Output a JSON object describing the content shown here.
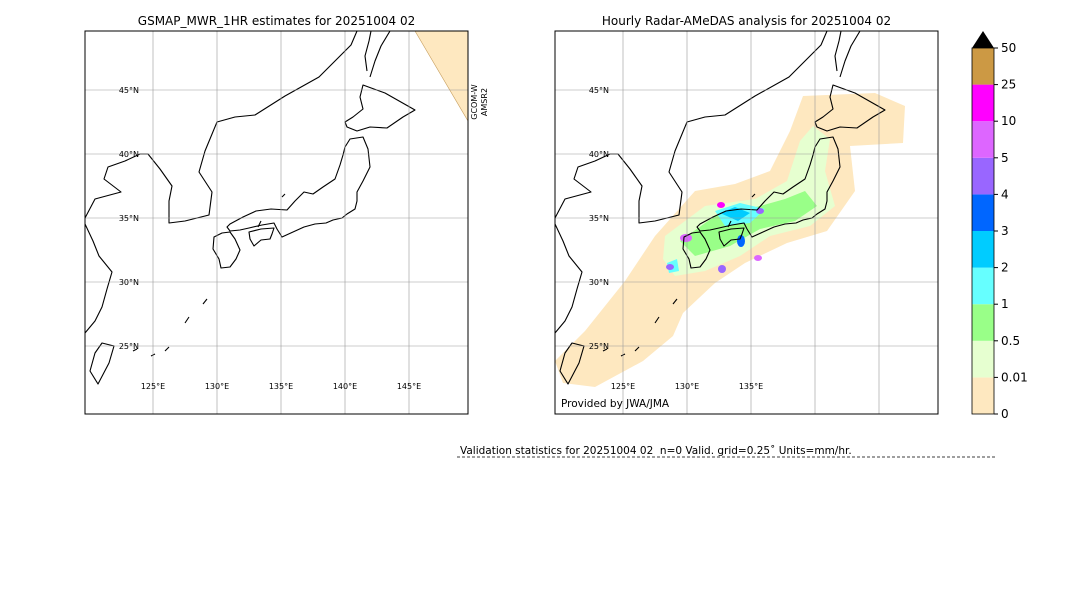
{
  "maps": [
    {
      "title": "GSMAP_MWR_1HR estimates for 20251004 02",
      "lat_labels": [
        "45°N",
        "40°N",
        "35°N",
        "30°N",
        "25°N"
      ],
      "lon_labels": [
        "125°E",
        "130°E",
        "135°E",
        "140°E",
        "145°E"
      ],
      "sensor_labels": [
        "GCOM-W",
        "AMSR2"
      ]
    },
    {
      "title": "Hourly Radar-AMeDAS analysis for 20251004 02",
      "lat_labels": [
        "45°N",
        "40°N",
        "35°N",
        "30°N",
        "25°N"
      ],
      "lon_labels": [
        "125°E",
        "130°E",
        "135°E"
      ],
      "credit": "Provided by JWA/JMA"
    }
  ],
  "colorbar": {
    "levels": [
      0,
      0.01,
      0.5,
      1,
      2,
      3,
      4,
      5,
      10,
      25,
      50
    ],
    "colors": [
      "#fee8c0",
      "#e6ffd0",
      "#99ff88",
      "#66ffff",
      "#00ccff",
      "#0066ff",
      "#9966ff",
      "#dd66ff",
      "#ff00ff",
      "#cc9944"
    ]
  },
  "footer": {
    "validation": "Validation statistics for 20251004 02  n=0 Valid. grid=0.25˚ Units=mm/hr."
  }
}
